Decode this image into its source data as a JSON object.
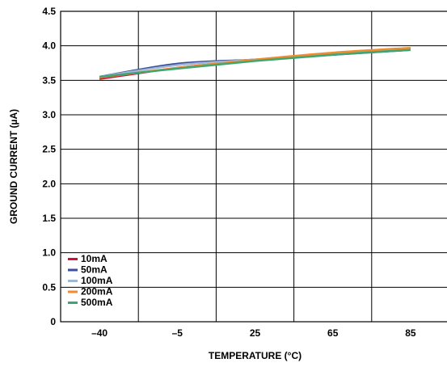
{
  "chart_data": {
    "type": "line",
    "xlabel": "TEMPERATURE (°C)",
    "ylabel": "GROUND CURRENT (µA)",
    "x": [
      -40,
      -5,
      25,
      65,
      85
    ],
    "x_tick_labels": [
      "–40",
      "–5",
      "25",
      "65",
      "85"
    ],
    "ylim": [
      0,
      4.5
    ],
    "y_ticks": [
      0,
      0.5,
      1.0,
      1.5,
      2.0,
      2.5,
      3.0,
      3.5,
      4.0,
      4.5
    ],
    "y_tick_labels": [
      "0",
      "0.5",
      "1.0",
      "1.5",
      "2.0",
      "2.5",
      "3.0",
      "3.5",
      "4.0",
      "4.5"
    ],
    "grid": true,
    "legend_position": "bottom-left",
    "series": [
      {
        "name": "10mA",
        "color": "#d0103a",
        "values": [
          3.52,
          3.68,
          3.79,
          3.89,
          3.96
        ]
      },
      {
        "name": "50mA",
        "color": "#3b4f9c",
        "values": [
          3.55,
          3.74,
          3.8,
          3.87,
          3.94
        ]
      },
      {
        "name": "100mA",
        "color": "#9fb7d4",
        "values": [
          3.55,
          3.72,
          3.8,
          3.88,
          3.95
        ]
      },
      {
        "name": "200mA",
        "color": "#f08c2e",
        "values": [
          3.54,
          3.68,
          3.8,
          3.9,
          3.97
        ]
      },
      {
        "name": "500mA",
        "color": "#3ea66e",
        "values": [
          3.55,
          3.67,
          3.78,
          3.87,
          3.94
        ]
      }
    ]
  }
}
